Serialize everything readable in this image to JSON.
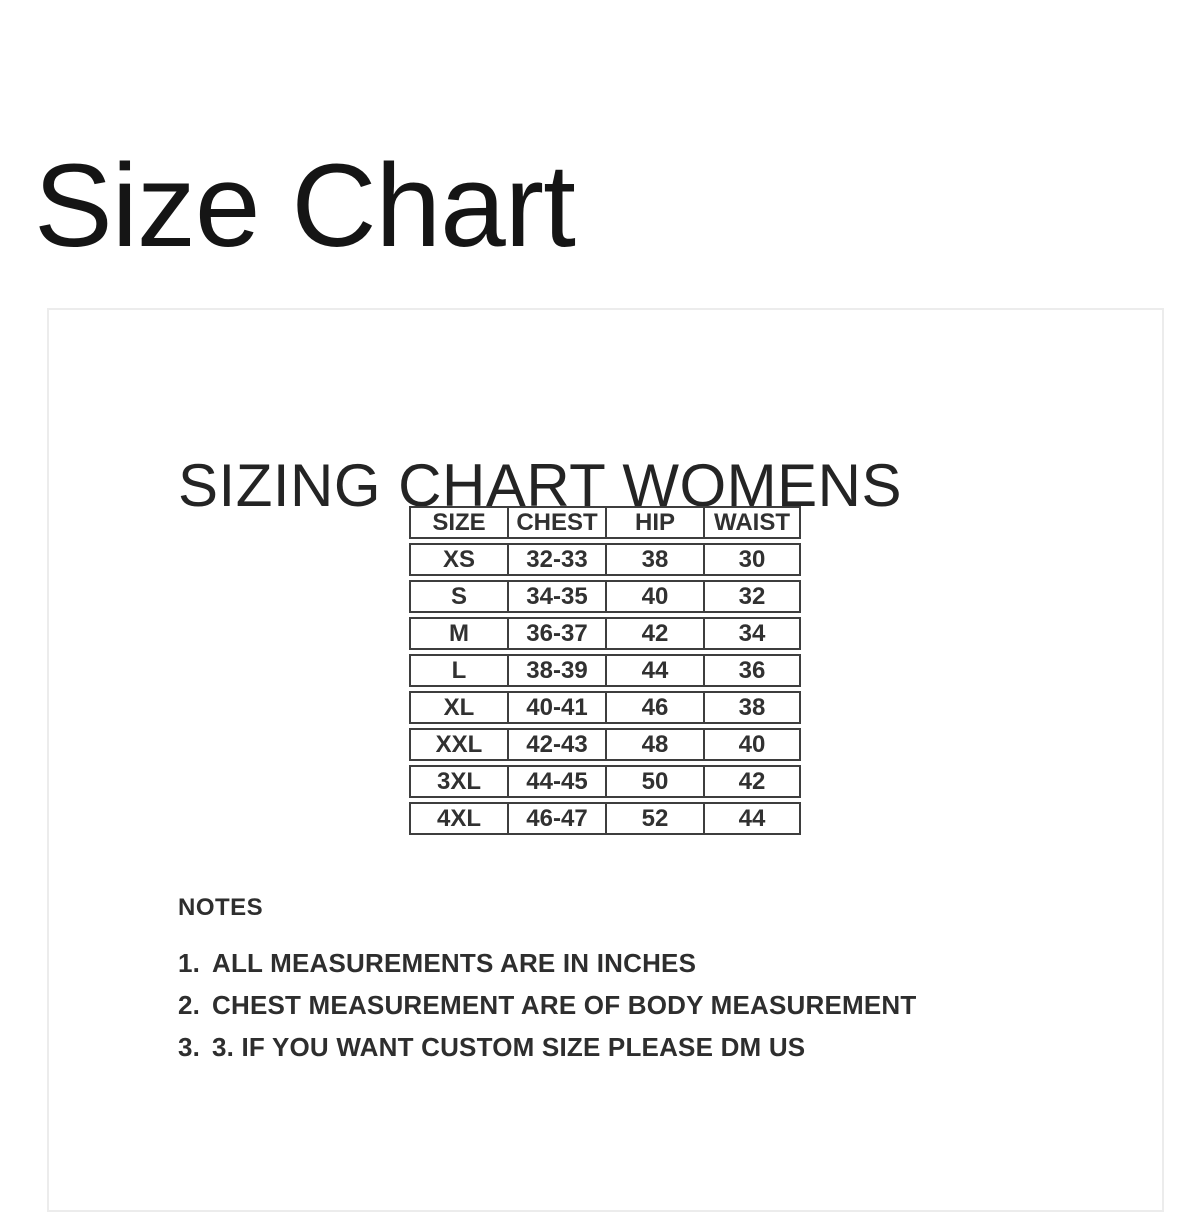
{
  "page_title": "Size Chart",
  "panel": {
    "heading": "SIZING CHART WOMENS",
    "table": {
      "columns": [
        "SIZE",
        "CHEST",
        "HIP",
        "WAIST"
      ],
      "rows": [
        [
          "XS",
          "32-33",
          "38",
          "30"
        ],
        [
          "S",
          "34-35",
          "40",
          "32"
        ],
        [
          "M",
          "36-37",
          "42",
          "34"
        ],
        [
          "L",
          "38-39",
          "44",
          "36"
        ],
        [
          "XL",
          "40-41",
          "46",
          "38"
        ],
        [
          "XXL",
          "42-43",
          "48",
          "40"
        ],
        [
          "3XL",
          "44-45",
          "50",
          "42"
        ],
        [
          "4XL",
          "46-47",
          "52",
          "44"
        ]
      ]
    },
    "notes": {
      "title": "NOTES",
      "items": [
        {
          "number": "1.",
          "text": "ALL MEASUREMENTS ARE IN INCHES"
        },
        {
          "number": "2.",
          "text": "CHEST MEASUREMENT ARE OF BODY MEASUREMENT"
        },
        {
          "number": "3.",
          "text": "3. IF YOU WANT CUSTOM SIZE PLEASE DM US"
        }
      ]
    }
  },
  "colors": {
    "page_background": "#ffffff",
    "card_border": "#ececec",
    "table_border": "#3e3e3e",
    "title_text": "#151515",
    "body_text": "#2e2e2e"
  }
}
